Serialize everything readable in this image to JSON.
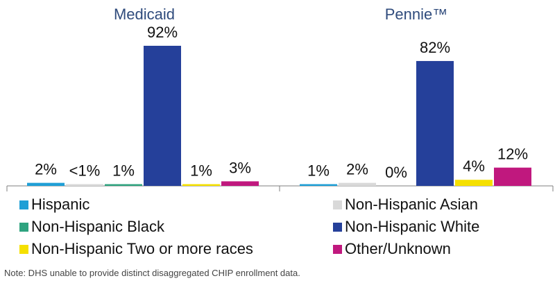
{
  "chart_data": {
    "type": "bar",
    "groups": [
      "Medicaid",
      "Pennie™"
    ],
    "series": [
      {
        "name": "Hispanic",
        "color": "#1f9fd6",
        "values": [
          2,
          1
        ],
        "labels": [
          "2%",
          "1%"
        ]
      },
      {
        "name": "Non-Hispanic Asian",
        "color": "#d9d9d9",
        "values": [
          0.5,
          2
        ],
        "labels": [
          "<1%",
          "2%"
        ]
      },
      {
        "name": "Non-Hispanic Black",
        "color": "#2fa37f",
        "values": [
          1,
          0
        ],
        "labels": [
          "1%",
          "0%"
        ]
      },
      {
        "name": "Non-Hispanic White",
        "color": "#25409a",
        "values": [
          92,
          82
        ],
        "labels": [
          "92%",
          "82%"
        ]
      },
      {
        "name": "Non-Hispanic Two or more races",
        "color": "#f5e000",
        "values": [
          1,
          4
        ],
        "labels": [
          "1%",
          "4%"
        ]
      },
      {
        "name": "Other/Unknown",
        "color": "#c0187e",
        "values": [
          3,
          12
        ],
        "labels": [
          "3%",
          "12%"
        ]
      }
    ],
    "ylim": [
      0,
      92
    ],
    "grid": false,
    "legend_placement": "bottom"
  },
  "legend_order": [
    0,
    1,
    2,
    3,
    4,
    5
  ],
  "note": "Note: DHS unable to provide distinct disaggregated CHIP enrollment data."
}
